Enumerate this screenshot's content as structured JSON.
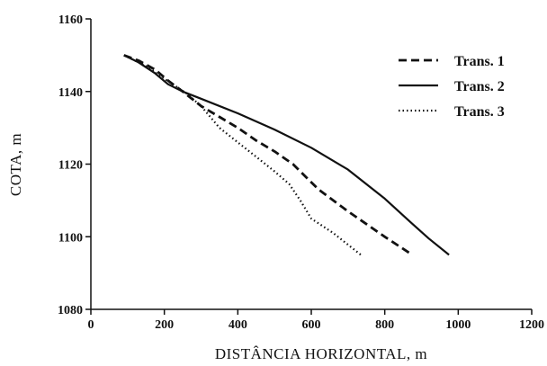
{
  "chart_data": {
    "type": "line",
    "xlabel": "DISTÂNCIA HORIZONTAL, m",
    "ylabel": "COTA, m",
    "xlim": [
      0,
      1200
    ],
    "ylim": [
      1080,
      1160
    ],
    "xticks": [
      0,
      200,
      400,
      600,
      800,
      1000,
      1200
    ],
    "yticks": [
      1080,
      1100,
      1120,
      1140,
      1160
    ],
    "grid": false,
    "legend_position": "top-right",
    "series": [
      {
        "name": "Trans. 1",
        "style": "dashed",
        "color": "#111111",
        "x": [
          90,
          130,
          175,
          210,
          250,
          300,
          350,
          400,
          450,
          500,
          550,
          580,
          620,
          700,
          800,
          875
        ],
        "y": [
          1150,
          1148.5,
          1146,
          1143,
          1140,
          1136,
          1133,
          1130,
          1126.5,
          1123.5,
          1120,
          1117,
          1113,
          1107,
          1100,
          1095
        ]
      },
      {
        "name": "Trans. 2",
        "style": "solid",
        "color": "#111111",
        "x": [
          90,
          130,
          175,
          210,
          250,
          300,
          400,
          500,
          600,
          700,
          800,
          870,
          920,
          975
        ],
        "y": [
          1150,
          1148,
          1145,
          1142,
          1140,
          1138,
          1134,
          1129.5,
          1124.5,
          1118.5,
          1110.5,
          1104,
          1099.5,
          1095
        ]
      },
      {
        "name": "Trans. 3",
        "style": "dotted",
        "color": "#111111",
        "x": [
          90,
          150,
          200,
          260,
          300,
          350,
          400,
          450,
          500,
          540,
          570,
          600,
          660,
          735
        ],
        "y": [
          1150,
          1147,
          1143.5,
          1139.5,
          1136,
          1130,
          1126,
          1122,
          1118,
          1114.5,
          1110,
          1105,
          1101,
          1095
        ]
      }
    ]
  }
}
